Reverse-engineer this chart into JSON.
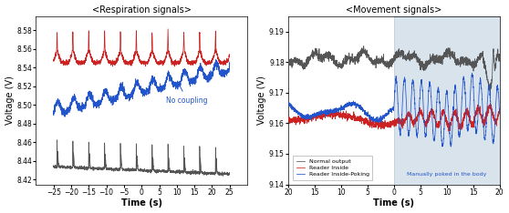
{
  "left_title": "<Respiration signals>",
  "right_title": "<Movement signals>",
  "left_xlabel": "Time (s)",
  "left_ylabel": "Voltage (V)",
  "right_xlabel": "Time (s)",
  "right_ylabel": "Voltage (V)",
  "left_xlim": [
    -30,
    30
  ],
  "left_ylim": [
    8.415,
    8.595
  ],
  "left_yticks": [
    8.42,
    8.44,
    8.46,
    8.48,
    8.5,
    8.52,
    8.54,
    8.56,
    8.58
  ],
  "left_xticks": [
    -25,
    -20,
    -15,
    -10,
    -5,
    0,
    5,
    10,
    15,
    20,
    25
  ],
  "right_xlim": [
    -20,
    20
  ],
  "right_ylim": [
    9.14,
    9.195
  ],
  "right_yticks": [
    9.14,
    9.15,
    9.16,
    9.17,
    9.18,
    9.19
  ],
  "annotation_left": "No coupling",
  "annotation_right": "Manually poked in the body",
  "legend_normal": "Normal output",
  "legend_reader": "Reader Inside",
  "legend_poking": "Reader Inside-Poking",
  "color_dark": "#555555",
  "color_red": "#cc2222",
  "color_blue": "#2255cc",
  "color_highlight": "#d0dde8"
}
